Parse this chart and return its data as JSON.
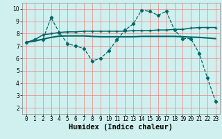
{
  "background_color": "#cff0ee",
  "plot_bg_color": "#cff0ee",
  "grid_color": "#f08080",
  "line_color": "#006666",
  "xlabel": "Humidex (Indice chaleur)",
  "xlabel_fontsize": 7.5,
  "xlim": [
    -0.5,
    23.5
  ],
  "ylim": [
    1.5,
    10.5
  ],
  "xticks": [
    0,
    1,
    2,
    3,
    4,
    5,
    6,
    7,
    8,
    9,
    10,
    11,
    12,
    13,
    14,
    15,
    16,
    17,
    18,
    19,
    20,
    21,
    22,
    23
  ],
  "yticks": [
    2,
    3,
    4,
    5,
    6,
    7,
    8,
    9,
    10
  ],
  "tick_fontsize": 5.5,
  "line1_x": [
    0,
    1,
    2,
    3,
    4,
    5,
    6,
    7,
    8,
    9,
    10,
    11,
    12,
    13,
    14,
    15,
    16,
    17,
    18,
    19,
    20,
    21,
    22,
    23
  ],
  "line1_y": [
    7.3,
    7.5,
    7.5,
    9.3,
    8.1,
    7.2,
    7.0,
    6.8,
    5.8,
    6.0,
    6.6,
    7.5,
    8.3,
    8.8,
    9.9,
    9.8,
    9.5,
    9.8,
    8.3,
    7.6,
    7.6,
    6.4,
    4.4,
    2.5
  ],
  "line1_marker": "D",
  "line1_markersize": 2.2,
  "line1_linewidth": 0.9,
  "line1_linestyle": "--",
  "line2_x": [
    0,
    1,
    2,
    3,
    4,
    5,
    6,
    7,
    8,
    9,
    10,
    11,
    12,
    13,
    14,
    15,
    16,
    17,
    18,
    19,
    20,
    21,
    22,
    23
  ],
  "line2_y": [
    7.3,
    7.5,
    7.9,
    8.0,
    8.1,
    8.15,
    8.15,
    8.2,
    8.2,
    8.2,
    8.2,
    8.2,
    8.2,
    8.25,
    8.25,
    8.25,
    8.3,
    8.3,
    8.35,
    8.35,
    8.45,
    8.5,
    8.5,
    8.5
  ],
  "line2_marker": "+",
  "line2_markersize": 3.5,
  "line2_linewidth": 1.1,
  "line2_linestyle": "-",
  "line3_x": [
    0,
    1,
    2,
    3,
    4,
    5,
    6,
    7,
    8,
    9,
    10,
    11,
    12,
    13,
    14,
    15,
    16,
    17,
    18,
    19,
    20,
    21,
    22,
    23
  ],
  "line3_y": [
    7.3,
    7.4,
    7.55,
    7.7,
    7.8,
    7.82,
    7.82,
    7.82,
    7.78,
    7.75,
    7.75,
    7.75,
    7.75,
    7.75,
    7.78,
    7.78,
    7.78,
    7.78,
    7.78,
    7.75,
    7.72,
    7.7,
    7.65,
    7.6
  ],
  "line3_linewidth": 1.5,
  "line3_linestyle": "-"
}
